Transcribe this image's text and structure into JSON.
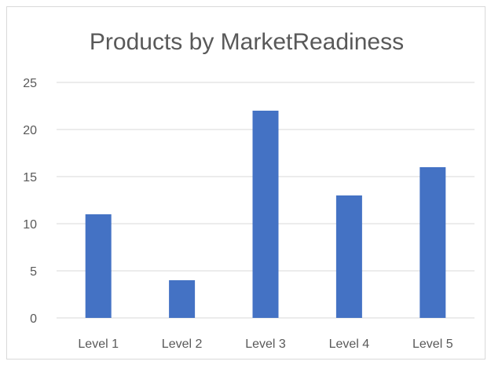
{
  "chart_data": {
    "type": "bar",
    "title": "Products by MarketReadiness",
    "categories": [
      "Level 1",
      "Level 2",
      "Level 3",
      "Level 4",
      "Level 5"
    ],
    "values": [
      11,
      4,
      22,
      13,
      16
    ],
    "xlabel": "",
    "ylabel": "",
    "ylim": [
      0,
      25
    ],
    "yticks": [
      0,
      5,
      10,
      15,
      20,
      25
    ],
    "grid": true,
    "legend": "none",
    "bar_color": "#4472c4",
    "grid_color": "#d9d9d9",
    "text_color": "#595959"
  }
}
